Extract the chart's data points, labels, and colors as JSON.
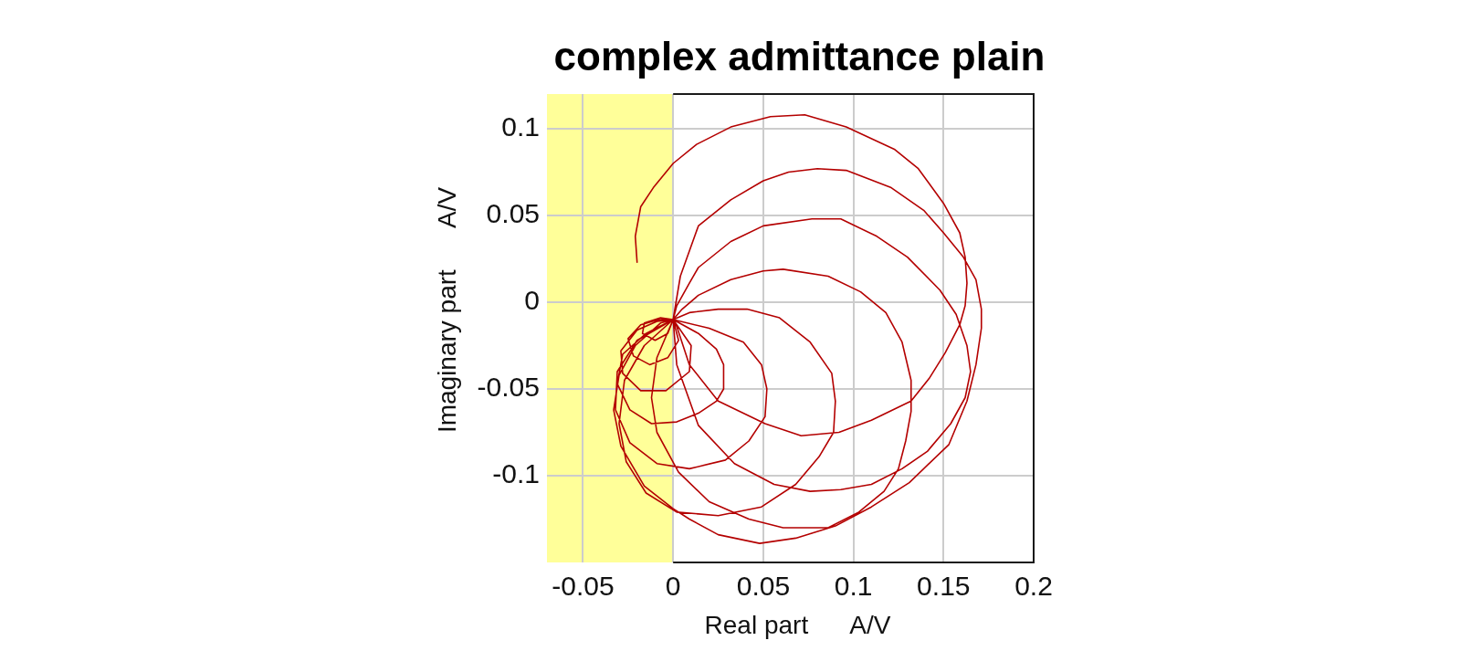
{
  "chart_data": {
    "type": "line",
    "title": "complex admittance plain",
    "xlabel": "Real part      A/V",
    "ylabel": "Imaginary part      A/V",
    "x": [
      -0.02,
      -0.021,
      -0.018,
      -0.011,
      0,
      0.013,
      0.032,
      0.054,
      0.073,
      0.096,
      0.123,
      0.136,
      0.15,
      0.159,
      0.162,
      0.163,
      0.162,
      0.159,
      0.151,
      0.142,
      0.132,
      0.11,
      0.092,
      0.071,
      0.051,
      0.025,
      0.009,
      0.002,
      0,
      0.004,
      0.014,
      0.032,
      0.05,
      0.064,
      0.08,
      0.096,
      0.121,
      0.139,
      0.15,
      0.161,
      0.168,
      0.171,
      0.171,
      0.168,
      0.163,
      0.153,
      0.131,
      0.11,
      0.09,
      0.068,
      0.048,
      0.025,
      0.009,
      0,
      -0.016,
      -0.029,
      -0.033,
      -0.03,
      -0.021,
      -0.007,
      0,
      0.002,
      0.009,
      0.014,
      0.032,
      0.05,
      0.077,
      0.093,
      0.113,
      0.13,
      0.148,
      0.157,
      0.163,
      0.165,
      0.162,
      0.154,
      0.141,
      0.127,
      0.11,
      0.093,
      0.076,
      0.056,
      0.034,
      0.014,
      0.002,
      0,
      0.005,
      0.014,
      0.032,
      0.05,
      0.061,
      0.086,
      0.104,
      0.118,
      0.127,
      0.132,
      0.132,
      0.129,
      0.125,
      0.117,
      0.103,
      0.086,
      0.061,
      0.042,
      0.02,
      0.003,
      -0.009,
      -0.012,
      -0.009,
      0,
      0.009,
      0.025,
      0.041,
      0.059,
      0.076,
      0.088,
      0.09,
      0.089,
      0.081,
      0.068,
      0.049,
      0.025,
      0.002,
      -0.015,
      -0.026,
      -0.03,
      -0.027,
      -0.016,
      0,
      0.02,
      0.039,
      0.049,
      0.052,
      0.051,
      0.042,
      0.029,
      0.009,
      -0.009,
      -0.024,
      -0.032,
      -0.031,
      -0.02,
      0,
      0.014,
      0.024,
      0.028,
      0.028,
      0.024,
      0.014,
      0.002,
      -0.012,
      -0.024,
      -0.031,
      -0.028,
      -0.015,
      0,
      0.01,
      0.009,
      -0.004,
      -0.018,
      -0.028,
      -0.029,
      -0.02,
      -0.009,
      0,
      0.003,
      -0.003,
      -0.013,
      -0.022,
      -0.025,
      -0.018,
      -0.008,
      0,
      -0.003,
      -0.01,
      -0.017,
      -0.016,
      -0.007,
      0
    ],
    "values": [
      0.023,
      0.038,
      0.055,
      0.066,
      0.08,
      0.091,
      0.101,
      0.107,
      0.108,
      0.101,
      0.088,
      0.077,
      0.057,
      0.04,
      0.026,
      0.011,
      -0.002,
      -0.013,
      -0.029,
      -0.044,
      -0.057,
      -0.068,
      -0.075,
      -0.077,
      -0.07,
      -0.057,
      -0.036,
      -0.014,
      -0.01,
      0.015,
      0.044,
      0.059,
      0.07,
      0.075,
      0.077,
      0.076,
      0.066,
      0.053,
      0.04,
      0.026,
      0.013,
      -0.004,
      -0.015,
      -0.036,
      -0.057,
      -0.082,
      -0.104,
      -0.118,
      -0.129,
      -0.136,
      -0.139,
      -0.134,
      -0.125,
      -0.119,
      -0.106,
      -0.083,
      -0.062,
      -0.042,
      -0.025,
      -0.012,
      -0.01,
      -0.002,
      0.011,
      0.02,
      0.035,
      0.044,
      0.048,
      0.048,
      0.038,
      0.026,
      0.007,
      -0.007,
      -0.025,
      -0.04,
      -0.055,
      -0.07,
      -0.086,
      -0.096,
      -0.105,
      -0.108,
      -0.109,
      -0.105,
      -0.093,
      -0.071,
      -0.036,
      -0.01,
      -0.004,
      0.004,
      0.013,
      0.018,
      0.019,
      0.015,
      0.006,
      -0.006,
      -0.023,
      -0.045,
      -0.063,
      -0.08,
      -0.096,
      -0.109,
      -0.121,
      -0.13,
      -0.13,
      -0.125,
      -0.115,
      -0.098,
      -0.075,
      -0.055,
      -0.032,
      -0.01,
      -0.006,
      -0.004,
      -0.004,
      -0.009,
      -0.023,
      -0.041,
      -0.057,
      -0.075,
      -0.089,
      -0.105,
      -0.118,
      -0.123,
      -0.121,
      -0.11,
      -0.092,
      -0.07,
      -0.045,
      -0.025,
      -0.01,
      -0.015,
      -0.023,
      -0.036,
      -0.05,
      -0.066,
      -0.08,
      -0.091,
      -0.096,
      -0.093,
      -0.081,
      -0.062,
      -0.04,
      -0.022,
      -0.01,
      -0.018,
      -0.027,
      -0.036,
      -0.05,
      -0.057,
      -0.064,
      -0.069,
      -0.07,
      -0.062,
      -0.047,
      -0.03,
      -0.018,
      -0.01,
      -0.025,
      -0.04,
      -0.051,
      -0.051,
      -0.041,
      -0.028,
      -0.016,
      -0.011,
      -0.01,
      -0.022,
      -0.032,
      -0.036,
      -0.031,
      -0.021,
      -0.013,
      -0.01,
      -0.01,
      -0.018,
      -0.022,
      -0.018,
      -0.012,
      -0.009,
      -0.01
    ],
    "color": "#b40000",
    "marker": "none",
    "grid": true,
    "xlim": [
      -0.07,
      0.2
    ],
    "ylim": [
      -0.15,
      0.12
    ],
    "xticks": [
      -0.05,
      0,
      0.05,
      0.1,
      0.15,
      0.2
    ],
    "yticks": [
      -0.1,
      -0.05,
      0,
      0.05,
      0.1
    ],
    "bands": [
      {
        "axis": "x",
        "from": -0.07,
        "to": 0,
        "color": "#ffff99"
      }
    ]
  }
}
